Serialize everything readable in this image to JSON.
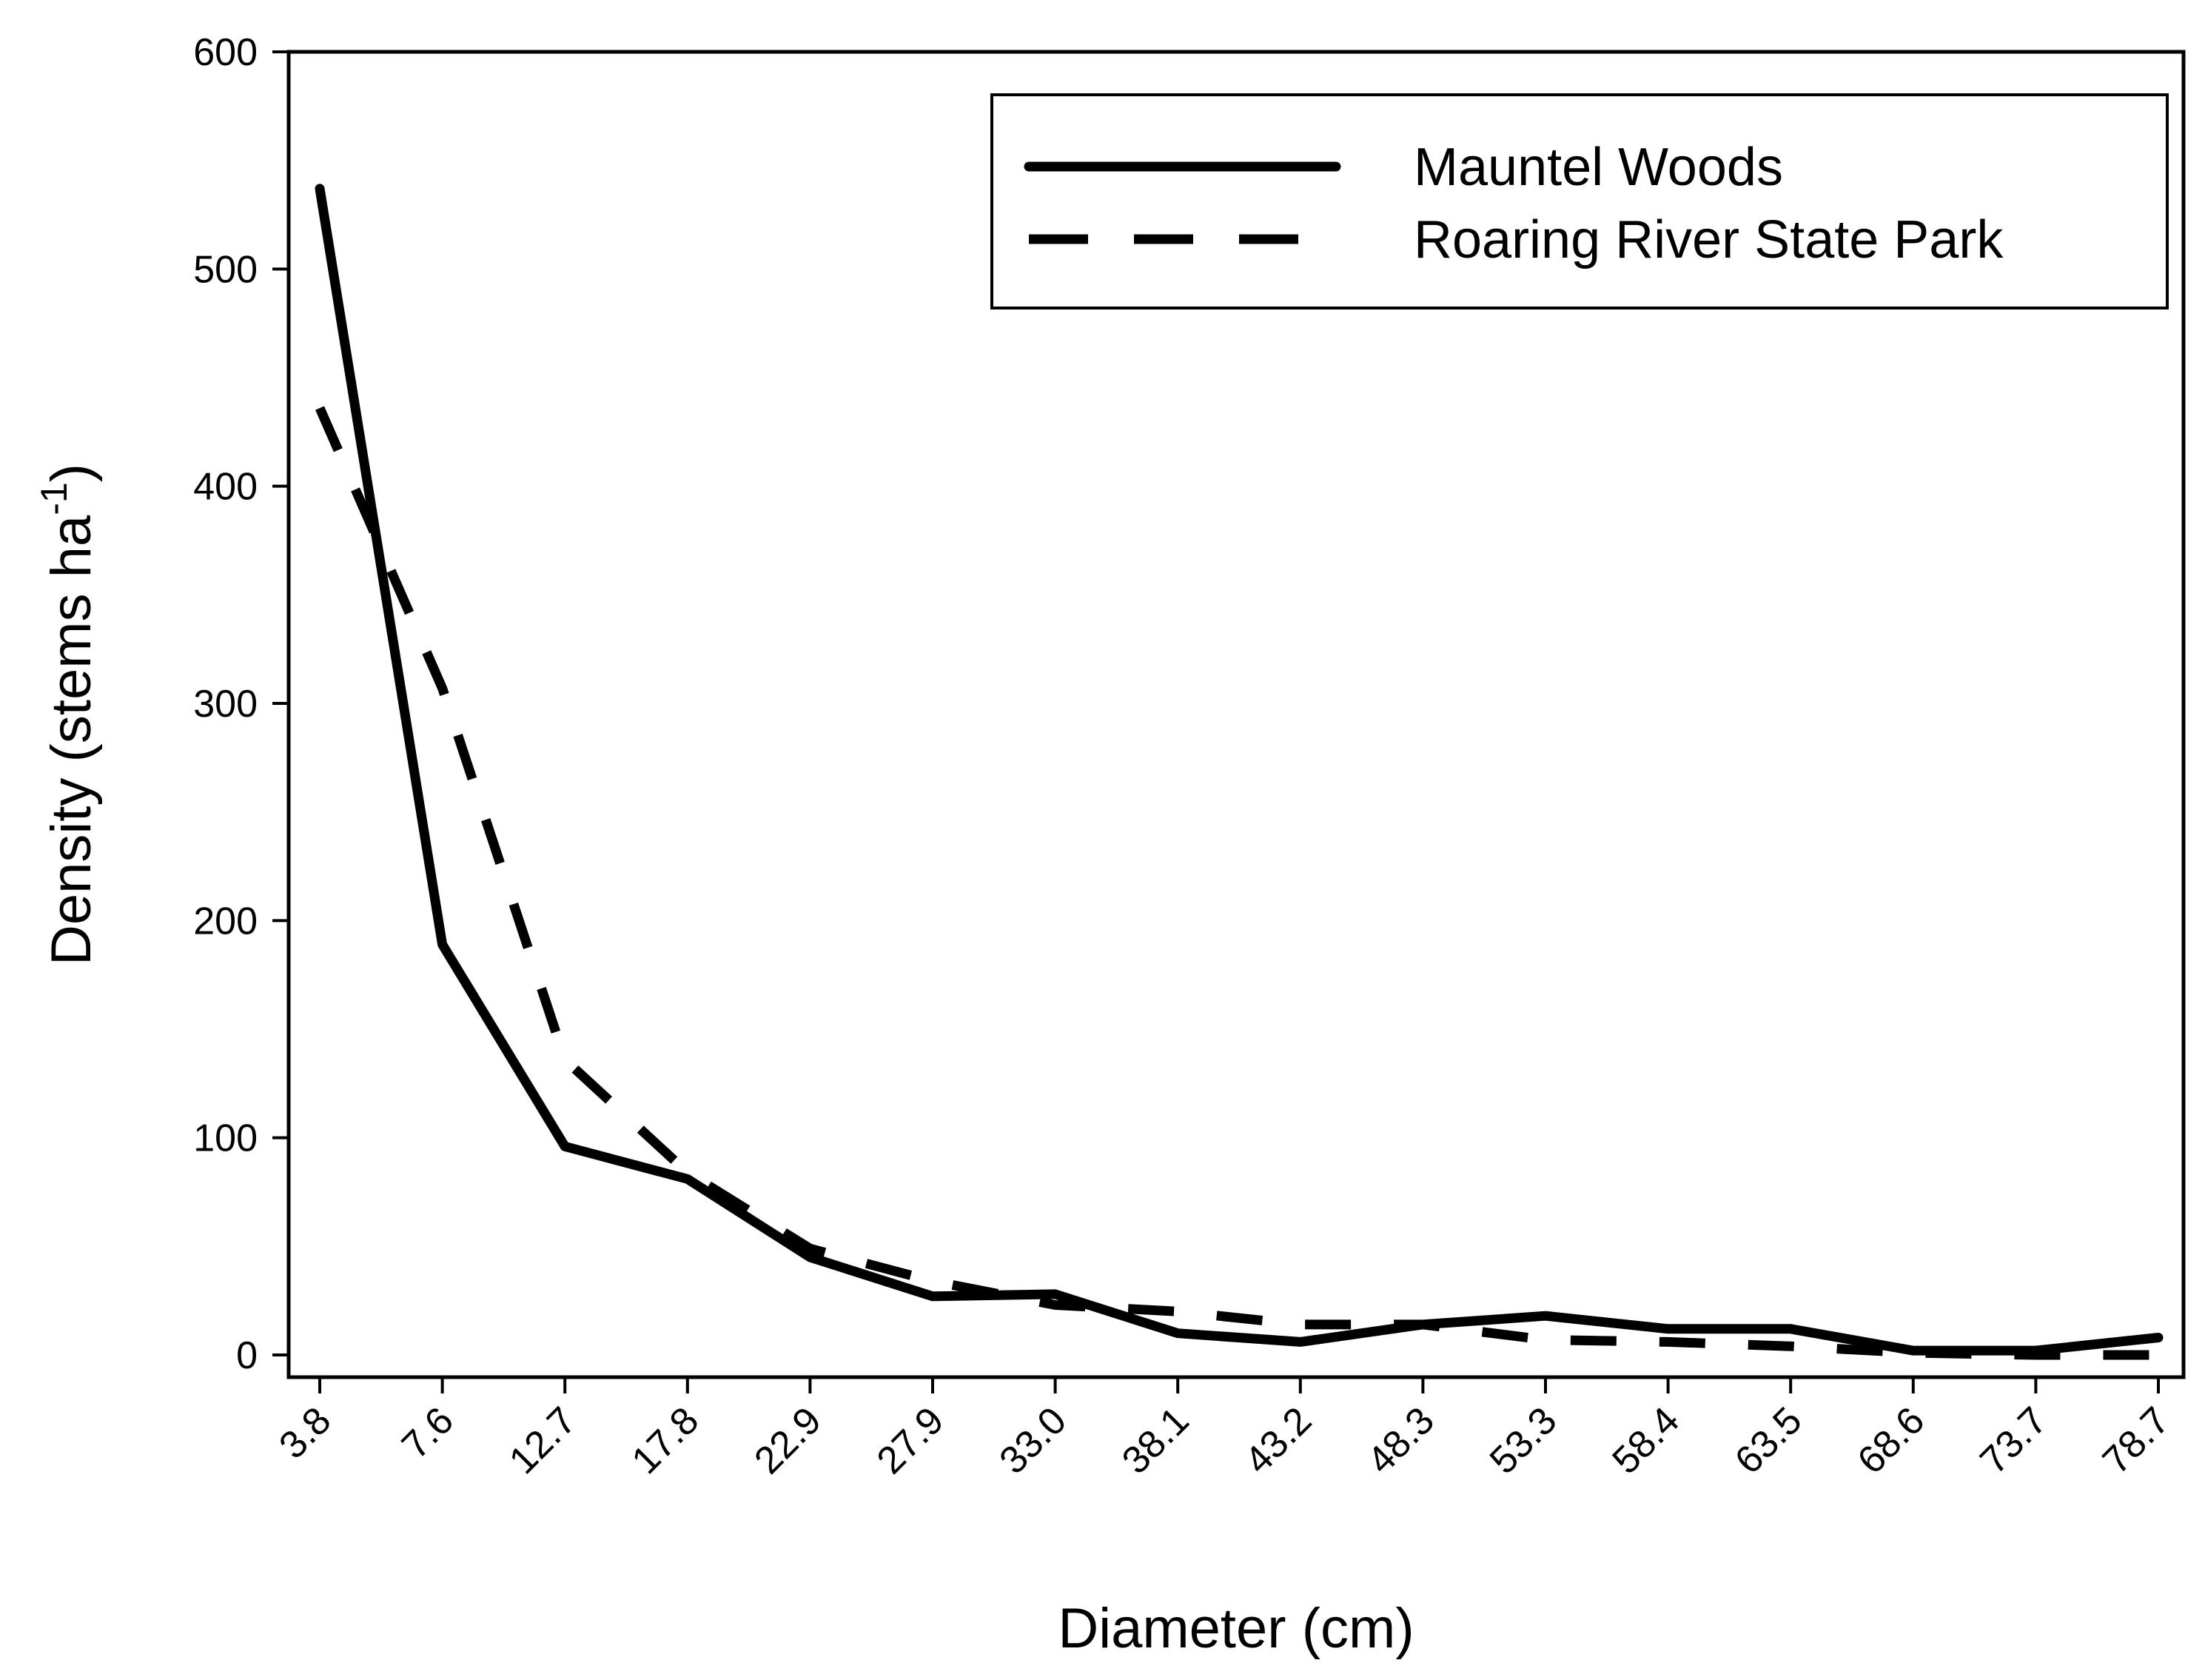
{
  "chart_data": {
    "type": "line",
    "categories": [
      "3.8",
      "7.6",
      "12.7",
      "17.8",
      "22.9",
      "27.9",
      "33.0",
      "38.1",
      "43.2",
      "48.3",
      "53.3",
      "58.4",
      "63.5",
      "68.6",
      "73.7",
      "78.7"
    ],
    "series": [
      {
        "name": "Mauntel Woods",
        "style": "solid",
        "color": "#000000",
        "values": [
          537,
          189,
          96,
          81,
          45,
          27,
          28,
          10,
          6,
          14,
          18,
          12,
          12,
          2,
          2,
          8
        ]
      },
      {
        "name": "Roaring River State Park",
        "style": "dashed",
        "color": "#000000",
        "values": [
          436,
          307,
          136,
          84,
          49,
          34,
          23,
          20,
          14,
          14,
          7,
          6,
          4,
          1,
          0,
          0
        ]
      }
    ],
    "xlabel": "Diameter (cm)",
    "ylabel": {
      "main": "Density (stems ha",
      "superscript": "-1",
      "close": ")"
    },
    "ylim": [
      0,
      600
    ],
    "yticks": [
      0,
      100,
      200,
      300,
      400,
      500,
      600
    ],
    "grid": false,
    "legend_position": "top-right"
  }
}
